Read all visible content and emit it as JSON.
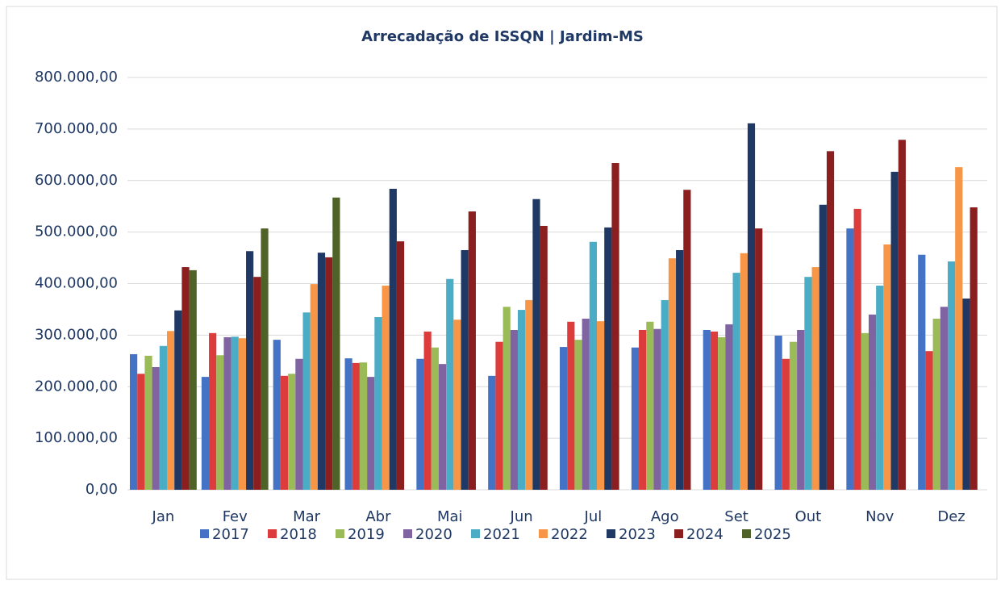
{
  "chart_data": {
    "type": "bar",
    "title": "Arrecadação de ISSQN | Jardim-MS",
    "categories": [
      "Jan",
      "Fev",
      "Mar",
      "Abr",
      "Mai",
      "Jun",
      "Jul",
      "Ago",
      "Set",
      "Out",
      "Nov",
      "Dez"
    ],
    "series": [
      {
        "name": "2017",
        "color": "#4472c4",
        "values": [
          263000,
          219000,
          291000,
          255000,
          254000,
          221000,
          277000,
          276000,
          310000,
          299000,
          507000,
          456000
        ]
      },
      {
        "name": "2018",
        "color": "#dc3c3c",
        "values": [
          225000,
          304000,
          221000,
          246000,
          307000,
          287000,
          326000,
          310000,
          307000,
          254000,
          545000,
          269000
        ]
      },
      {
        "name": "2019",
        "color": "#9bbb59",
        "values": [
          260000,
          261000,
          225000,
          247000,
          276000,
          355000,
          291000,
          326000,
          296000,
          287000,
          304000,
          332000
        ]
      },
      {
        "name": "2020",
        "color": "#8064a2",
        "values": [
          238000,
          296000,
          254000,
          219000,
          244000,
          310000,
          332000,
          312000,
          321000,
          310000,
          340000,
          355000
        ]
      },
      {
        "name": "2021",
        "color": "#4bacc6",
        "values": [
          279000,
          297000,
          344000,
          335000,
          409000,
          349000,
          481000,
          368000,
          421000,
          413000,
          396000,
          443000
        ]
      },
      {
        "name": "2022",
        "color": "#f79646",
        "values": [
          308000,
          294000,
          399000,
          396000,
          330000,
          368000,
          327000,
          449000,
          459000,
          432000,
          476000,
          626000
        ]
      },
      {
        "name": "2023",
        "color": "#1f3864",
        "values": [
          348000,
          463000,
          460000,
          584000,
          465000,
          564000,
          509000,
          465000,
          711000,
          553000,
          617000,
          371000
        ]
      },
      {
        "name": "2024",
        "color": "#8b1e1e",
        "values": [
          432000,
          413000,
          451000,
          482000,
          540000,
          512000,
          634000,
          582000,
          507000,
          657000,
          679000,
          548000
        ]
      },
      {
        "name": "2025",
        "color": "#4f6228",
        "values": [
          426000,
          507000,
          567000,
          null,
          null,
          null,
          null,
          null,
          null,
          null,
          null,
          null
        ]
      }
    ],
    "ylim": [
      0,
      800000
    ],
    "yticks": [
      {
        "value": 0,
        "label": "0,00"
      },
      {
        "value": 100000,
        "label": "100.000,00"
      },
      {
        "value": 200000,
        "label": "200.000,00"
      },
      {
        "value": 300000,
        "label": "300.000,00"
      },
      {
        "value": 400000,
        "label": "400.000,00"
      },
      {
        "value": 500000,
        "label": "500.000,00"
      },
      {
        "value": 600000,
        "label": "600.000,00"
      },
      {
        "value": 700000,
        "label": "700.000,00"
      },
      {
        "value": 800000,
        "label": "800.000,00"
      }
    ],
    "grid": true,
    "legend": "bottom"
  }
}
